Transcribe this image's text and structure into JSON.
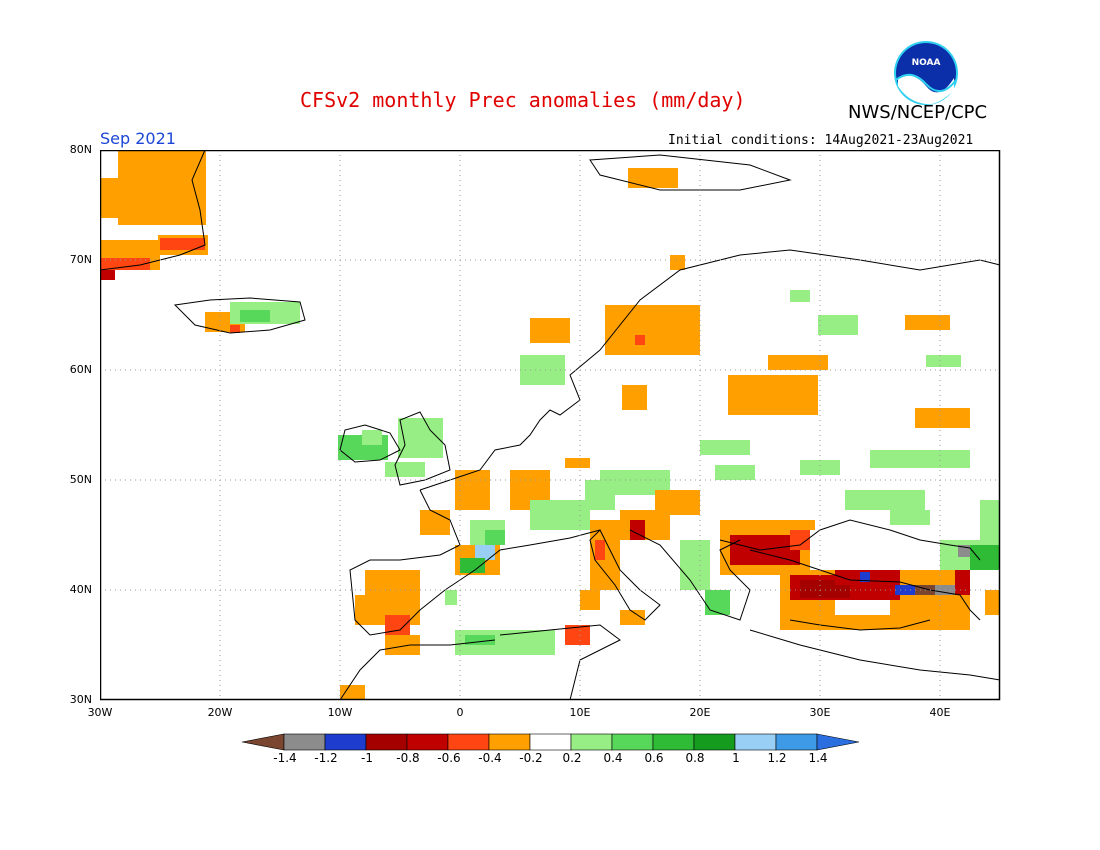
{
  "header": {
    "title": "CFSv2 monthly Prec anomalies (mm/day)",
    "agency": "NWS/NCEP/CPC",
    "period": "Sep 2021",
    "initial_conditions": "Initial conditions: 14Aug2021-23Aug2021",
    "logo_text": "NOAA"
  },
  "map": {
    "lat_labels": [
      "80N",
      "70N",
      "60N",
      "50N",
      "40N",
      "30N"
    ],
    "lon_labels": [
      "30W",
      "20W",
      "10W",
      "0",
      "10E",
      "20E",
      "30E",
      "40E"
    ]
  },
  "colorbar": {
    "labels": [
      "-1.4",
      "-1.2",
      "-1",
      "-0.8",
      "-0.6",
      "-0.4",
      "-0.2",
      "0.2",
      "0.4",
      "0.6",
      "0.8",
      "1",
      "1.2",
      "1.4"
    ],
    "colors": [
      "#7a4630",
      "#8c8c8c",
      "#1e3ccd",
      "#a40000",
      "#c00000",
      "#ff4512",
      "#ffa000",
      "#ffffff",
      "#96ee84",
      "#57d85b",
      "#2fbb36",
      "#159c1f",
      "#99cff4",
      "#3e9ae6",
      "#2a6ee0"
    ]
  }
}
